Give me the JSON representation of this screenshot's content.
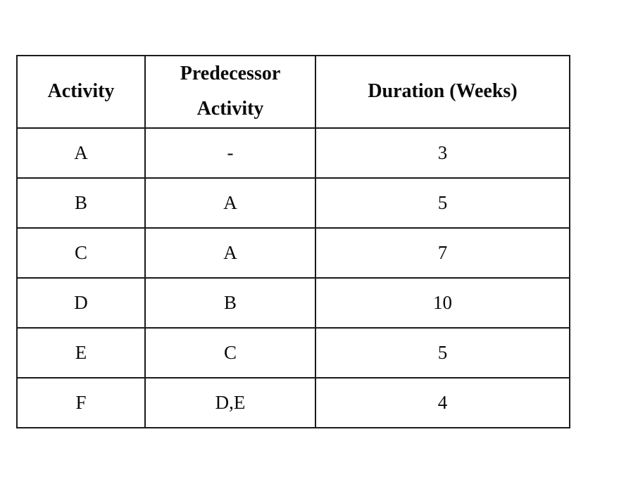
{
  "table": {
    "columns": [
      {
        "label": "Activity"
      },
      {
        "label": "Predecessor Activity"
      },
      {
        "label": "Duration (Weeks)"
      }
    ],
    "rows": [
      {
        "activity": "A",
        "predecessor": "-",
        "duration": "3"
      },
      {
        "activity": "B",
        "predecessor": "A",
        "duration": "5"
      },
      {
        "activity": "C",
        "predecessor": "A",
        "duration": "7"
      },
      {
        "activity": "D",
        "predecessor": "B",
        "duration": "10"
      },
      {
        "activity": "E",
        "predecessor": "C",
        "duration": "5"
      },
      {
        "activity": "F",
        "predecessor": "D,E",
        "duration": "4"
      }
    ]
  },
  "colors": {
    "border": "#1b1b1b",
    "text": "#0a0a0a",
    "background": "#ffffff"
  }
}
